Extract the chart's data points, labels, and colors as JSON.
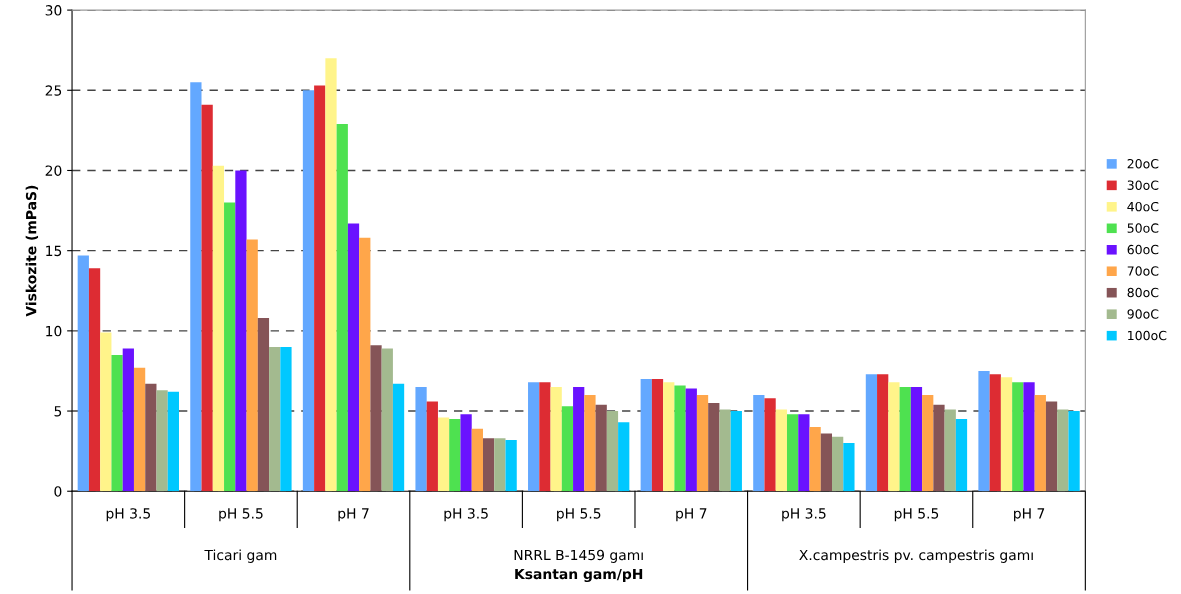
{
  "chart_data": {
    "type": "bar",
    "xlabel": "Ksantan gam/pH",
    "ylabel": "Viskozite (mPaS)",
    "categories": [
      "pH 3.5",
      "pH 5.5",
      "pH 7",
      "pH 3.5",
      "pH 5.5",
      "pH 7",
      "pH 3.5",
      "pH 5.5",
      "pH 7"
    ],
    "annotations": [
      "Ticari gam",
      "NRRL B-1459 gamı",
      "X.campestris pv. campestris gamı"
    ],
    "series": [
      {
        "name": "20oC",
        "color": "#63a8ff",
        "values": [
          14.7,
          25.5,
          25.0,
          6.5,
          6.8,
          7.0,
          6.0,
          7.3,
          7.5
        ]
      },
      {
        "name": "30oC",
        "color": "#dd2c33",
        "values": [
          13.9,
          24.1,
          25.3,
          5.6,
          6.8,
          7.0,
          5.8,
          7.3,
          7.3
        ]
      },
      {
        "name": "40oC",
        "color": "#fff48a",
        "values": [
          9.9,
          20.3,
          27.0,
          4.6,
          6.5,
          6.8,
          5.1,
          6.8,
          7.1
        ]
      },
      {
        "name": "50oC",
        "color": "#4ee150",
        "values": [
          8.5,
          18.0,
          22.9,
          4.5,
          5.3,
          6.6,
          4.8,
          6.5,
          6.8
        ]
      },
      {
        "name": "60oC",
        "color": "#6a12ff",
        "values": [
          8.9,
          20.0,
          16.7,
          4.8,
          6.5,
          6.4,
          4.8,
          6.5,
          6.8
        ]
      },
      {
        "name": "70oC",
        "color": "#ffa64a",
        "values": [
          7.7,
          15.7,
          15.8,
          3.9,
          6.0,
          6.0,
          4.0,
          6.0,
          6.0
        ]
      },
      {
        "name": "80oC",
        "color": "#855457",
        "values": [
          6.7,
          10.8,
          9.1,
          3.3,
          5.4,
          5.5,
          3.6,
          5.4,
          5.6
        ]
      },
      {
        "name": "90oC",
        "color": "#a3ba8f",
        "values": [
          6.3,
          9.0,
          8.9,
          3.3,
          5.0,
          5.1,
          3.4,
          5.1,
          5.1
        ]
      },
      {
        "name": "100oC",
        "color": "#00c8ff",
        "values": [
          6.2,
          9.0,
          6.7,
          3.2,
          4.3,
          5.0,
          3.0,
          4.5,
          5.0
        ]
      }
    ],
    "ylim": [
      0,
      30
    ],
    "yticks": [
      0,
      5,
      10,
      15,
      20,
      25,
      30
    ],
    "grid": "y",
    "legend": "right"
  }
}
